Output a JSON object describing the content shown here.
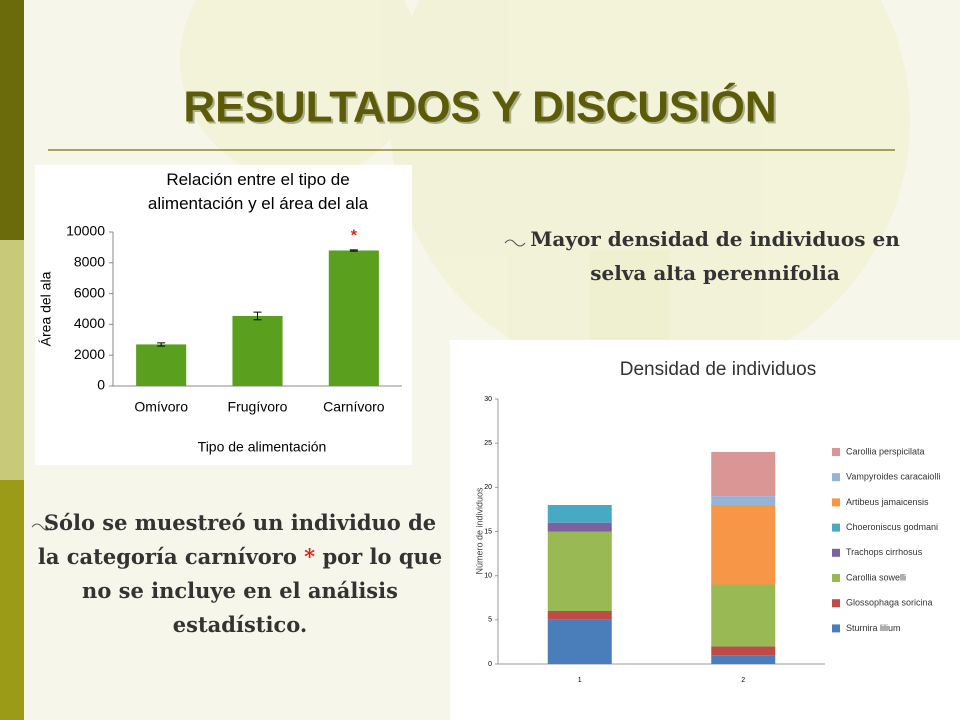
{
  "title": "RESULTADOS Y DISCUSIÓN",
  "bullets": [
    {
      "parts": [
        "Mayor densidad de individuos en selva alta perennifolia"
      ]
    },
    {
      "parts": [
        "Sólo se muestreó un individuo de la categoría carnívoro ",
        "*",
        " por lo que no se incluye en el análisis estadístico."
      ]
    }
  ],
  "chart_data": [
    {
      "type": "bar",
      "title": "Relación entre el tipo de alimentación y el área del ala",
      "categories": [
        "Omívoro",
        "Frugívoro",
        "Carnívoro"
      ],
      "values": [
        2700,
        4550,
        8800
      ],
      "errors": [
        100,
        250,
        40
      ],
      "color": "#5aa01e",
      "annotation": "*",
      "xlabel": "Tipo de alimentación",
      "ylabel": "Área del ala",
      "ylim": [
        0,
        10000
      ],
      "yticks": [
        0,
        2000,
        4000,
        6000,
        8000,
        10000
      ],
      "grid": false
    },
    {
      "type": "stacked_bar",
      "title": "Densidad de individuos",
      "categories": [
        "1",
        "2"
      ],
      "ylabel": "Número de individuos",
      "ylim": [
        0,
        30
      ],
      "yticks": [
        0,
        5,
        10,
        15,
        20,
        25,
        30
      ],
      "grid": false,
      "legend": "right",
      "series": [
        {
          "name": "Sturnira lilium",
          "color": "#4a7ebb",
          "values": [
            5,
            1
          ]
        },
        {
          "name": "Glossophaga soricina",
          "color": "#be4b48",
          "values": [
            1,
            1
          ]
        },
        {
          "name": "Carollia sowelli",
          "color": "#98b954",
          "values": [
            9,
            7
          ]
        },
        {
          "name": "Trachops cirrhosus",
          "color": "#7d60a0",
          "values": [
            1,
            0
          ]
        },
        {
          "name": "Choeroniscus godmani",
          "color": "#46aac5",
          "values": [
            2,
            0
          ]
        },
        {
          "name": "Artibeus jamaicensis",
          "color": "#f79646",
          "values": [
            0,
            9
          ]
        },
        {
          "name": "Vampyroides caracaiolli",
          "color": "#95b3d7",
          "values": [
            0,
            1
          ]
        },
        {
          "name": "Carollia perspicilata",
          "color": "#d99694",
          "values": [
            0,
            5
          ]
        }
      ]
    }
  ]
}
